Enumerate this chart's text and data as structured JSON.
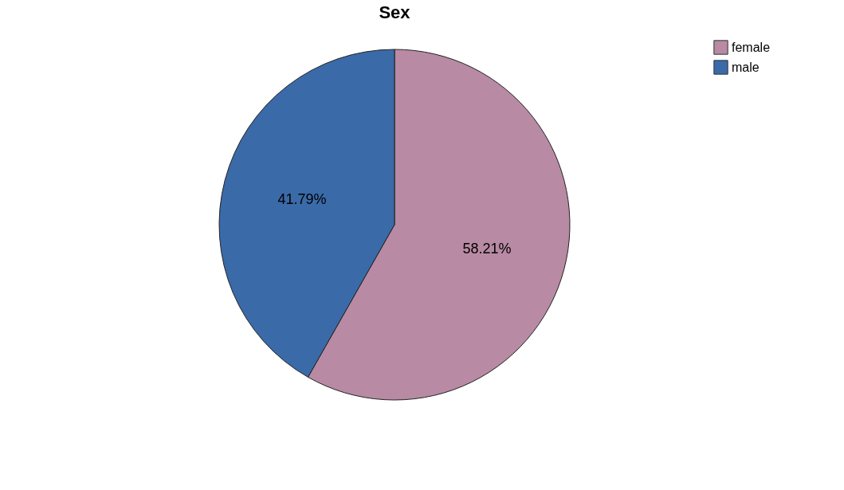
{
  "chart_data": {
    "type": "pie",
    "title": "Sex",
    "categories": [
      "female",
      "male"
    ],
    "values": [
      58.21,
      41.79
    ],
    "colors": [
      "#b88aa3",
      "#3a6aa8"
    ],
    "value_labels": [
      "58.21%",
      "41.79%"
    ],
    "legend": "top right"
  }
}
